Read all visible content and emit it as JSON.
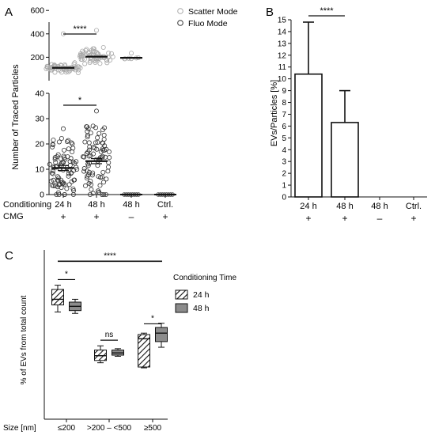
{
  "panels": {
    "a": "A",
    "b": "B",
    "c": "C"
  },
  "chart_data": [
    {
      "panel": "A",
      "type": "scatter",
      "ylabel": "Number of Traced Particles",
      "legend": {
        "placement": "top-right",
        "entries": [
          "Scatter Mode",
          "Fluo Mode"
        ]
      },
      "categories": [
        "24 h",
        "48 h",
        "48 h",
        "Ctrl."
      ],
      "row_labels": {
        "conditioning": "Conditioning",
        "cmg": "CMG"
      },
      "cmg": [
        "+",
        "+",
        "–",
        "+"
      ],
      "upper_axis": {
        "ticks": [
          200,
          400,
          600
        ]
      },
      "lower_axis": {
        "ticks": [
          0,
          10,
          20,
          30,
          40
        ],
        "ylim": [
          0,
          40
        ]
      },
      "series": [
        {
          "name": "Scatter Mode",
          "categories": [
            "24 h",
            "48 h",
            "48 h"
          ],
          "mean": [
            110,
            205,
            195
          ],
          "range": [
            [
              60,
              400
            ],
            [
              120,
              430
            ],
            [
              185,
              235
            ]
          ]
        },
        {
          "name": "Fluo Mode",
          "categories": [
            "24 h",
            "48 h",
            "48 h",
            "Ctrl."
          ],
          "mean": [
            10.5,
            13.2,
            0,
            0
          ],
          "range": [
            [
              0,
              26
            ],
            [
              0,
              33
            ],
            [
              0,
              0
            ],
            [
              0,
              0
            ]
          ]
        }
      ],
      "significance": [
        {
          "between": [
            "24 h",
            "48 h"
          ],
          "axis": "upper",
          "label": "****"
        },
        {
          "between": [
            "24 h",
            "48 h"
          ],
          "axis": "lower",
          "label": "*"
        }
      ]
    },
    {
      "panel": "B",
      "type": "bar",
      "ylabel": "EVs/Particles [%]",
      "categories": [
        "24 h",
        "48 h",
        "48 h",
        "Ctrl."
      ],
      "cmg": [
        "+",
        "+",
        "–",
        "+"
      ],
      "values": [
        10.4,
        6.3,
        0,
        0
      ],
      "error_upper": [
        14.8,
        9.0,
        0,
        0
      ],
      "yticks": [
        0,
        1,
        2,
        3,
        4,
        5,
        6,
        7,
        8,
        9,
        10,
        11,
        12,
        13,
        14,
        15
      ],
      "ylim": [
        0,
        15
      ],
      "significance": [
        {
          "between": [
            "24 h",
            "48 h"
          ],
          "label": "****"
        }
      ]
    },
    {
      "panel": "C",
      "type": "box",
      "ylabel": "% of EVs from total count",
      "xlabel": "Size [nm]",
      "categories": [
        "≤200",
        ">200 – <500",
        "≥500"
      ],
      "legend": {
        "title": "Conditioning Time",
        "placement": "right",
        "entries": [
          "24 h",
          "48 h"
        ]
      },
      "series": [
        {
          "name": "24 h",
          "q1": [
            40.5,
            20.8,
            18.5
          ],
          "median": [
            42.5,
            22.5,
            28.5
          ],
          "q3": [
            46,
            24.5,
            30
          ],
          "whisker_low": [
            38,
            20,
            18.2
          ],
          "whisker_high": [
            47.5,
            26,
            30.5
          ]
        },
        {
          "name": "48 h",
          "q1": [
            38.5,
            22.7,
            27.5
          ],
          "median": [
            40,
            23.5,
            30.5
          ],
          "q3": [
            41.5,
            24.5,
            32.5
          ],
          "whisker_low": [
            37.5,
            22.3,
            25.5
          ],
          "whisker_high": [
            42.5,
            25,
            34
          ]
        }
      ],
      "significance": [
        {
          "group": "≤200",
          "label": "*"
        },
        {
          "group": ">200 – <500",
          "label": "ns"
        },
        {
          "group": "≥500",
          "label": "*"
        },
        {
          "span": "all",
          "label": "****"
        }
      ]
    }
  ]
}
